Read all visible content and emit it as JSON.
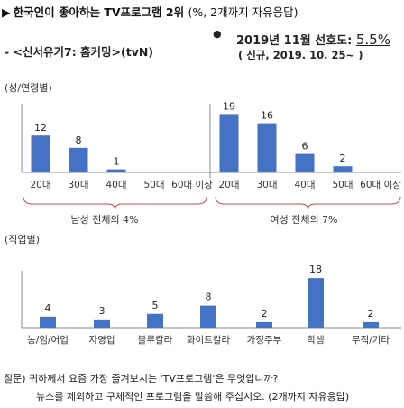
{
  "header": {
    "arrow": "▶",
    "title": "한국인이 좋아하는 TV프로그램 2위",
    "subtitle": "(%, 2개까지 자유응답)",
    "program": "- <신서유기7: 홈커밍>(tvN)",
    "pref_bullet": "●",
    "pref_label": "2019년 11월 선호도:",
    "pref_value": "5.5%",
    "pref_note": "( 신규, 2019. 10. 25~ )"
  },
  "sections": {
    "gender_age": "(성/연령별)",
    "occupation": "(직업별)"
  },
  "groups": {
    "male_label": "남성 전체의 4%",
    "female_label": "여성 전체의 7%"
  },
  "question": {
    "line1": "질문) 귀하께서 요즘 가장 즐겨보시는 'TV프로그램'은 무엇입니까?",
    "line2": "뉴스를 제외하고 구체적인 프로그램을 말씀해 주십시오. (2개까지 자유응답)"
  },
  "colors": {
    "bar": "#4472c4",
    "brace": "#c0504d",
    "axis": "#888888"
  },
  "chart_data": [
    {
      "type": "bar",
      "title": "(성/연령별)",
      "categories": [
        "20대",
        "30대",
        "40대",
        "50대",
        "60대 이상",
        "20대",
        "30대",
        "40대",
        "50대",
        "60대 이상"
      ],
      "groups": [
        "남성",
        "남성",
        "남성",
        "남성",
        "남성",
        "여성",
        "여성",
        "여성",
        "여성",
        "여성"
      ],
      "values": [
        12,
        8,
        1,
        null,
        null,
        19,
        16,
        6,
        2,
        null
      ],
      "xlabel": "",
      "ylabel": "",
      "ylim": [
        0,
        20
      ]
    },
    {
      "type": "bar",
      "title": "(직업별)",
      "categories": [
        "농/임/어업",
        "자영업",
        "블루칼라",
        "화이트칼라",
        "가정주부",
        "학생",
        "무직/기타"
      ],
      "values": [
        4,
        3,
        5,
        8,
        2,
        18,
        2
      ],
      "xlabel": "",
      "ylabel": "",
      "ylim": [
        0,
        20
      ]
    }
  ]
}
